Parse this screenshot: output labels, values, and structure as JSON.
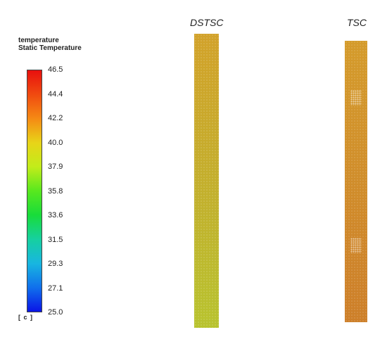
{
  "legend": {
    "title_line1": "temperature",
    "title_line2": "Static Temperature",
    "unit": "[ c ]",
    "ticks": [
      "46.5",
      "44.4",
      "42.2",
      "40.0",
      "37.9",
      "35.8",
      "33.6",
      "31.5",
      "29.3",
      "27.1",
      "25.0"
    ],
    "color_max": "#e8100e",
    "color_min": "#0a14e6"
  },
  "panels": {
    "dstsc_title": "DSTSC",
    "tsc_title": "TSC"
  },
  "colors": {
    "dstsc_top": "#d2a22a",
    "dstsc_bottom": "#b8c32e",
    "tsc_top": "#d49b2b",
    "tsc_bottom": "#cd7f29"
  }
}
